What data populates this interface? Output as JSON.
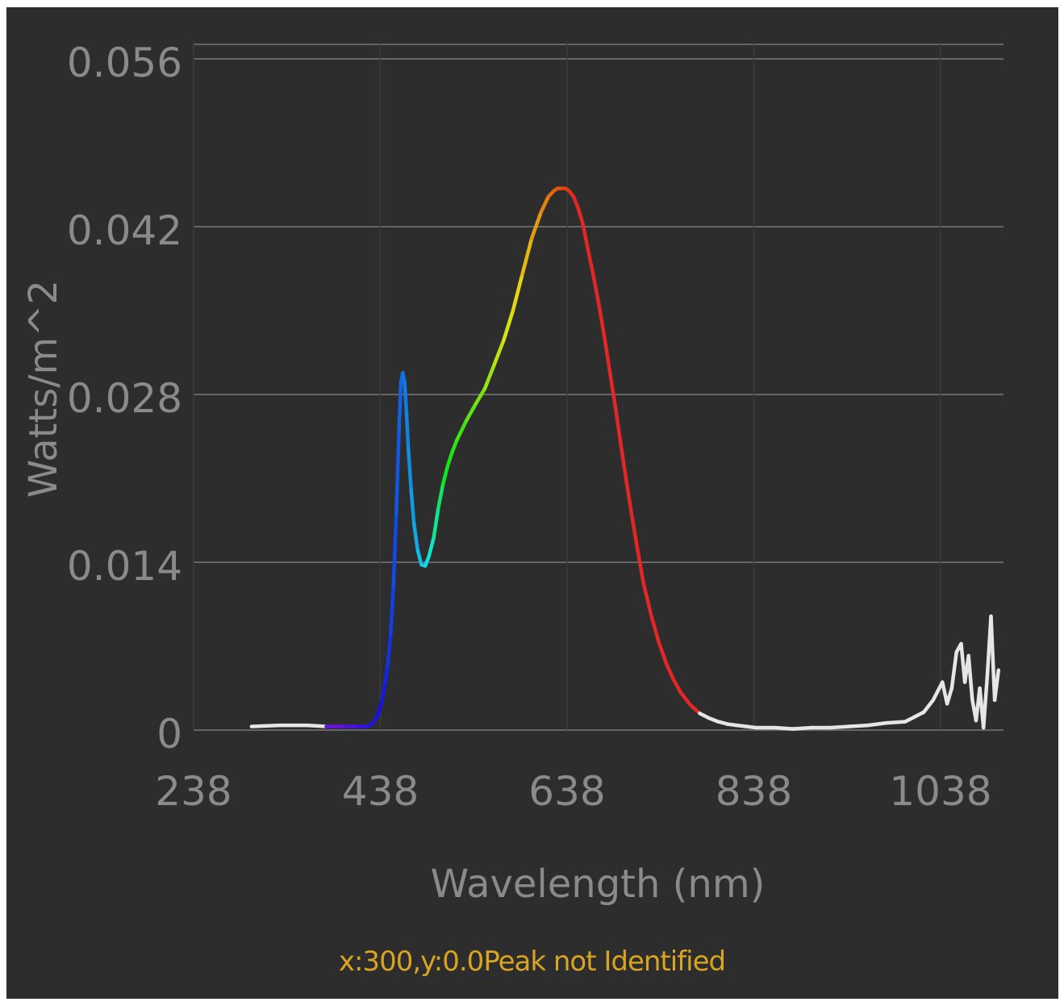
{
  "status_text": "x:300,y:0.0Peak not Identified",
  "colors": {
    "background": "#2d2d2d",
    "grid": "#666666",
    "text": "#8a8a8a",
    "status": "#d9a520"
  },
  "chart_data": {
    "type": "line",
    "title": "",
    "xlabel": "Wavelength (nm)",
    "ylabel": "Watts/m^2",
    "xlim": [
      238,
      1100
    ],
    "ylim": [
      0,
      0.056
    ],
    "x_ticks": [
      238,
      438,
      638,
      838,
      1038
    ],
    "x_tick_labels": [
      "238",
      "438",
      "638",
      "838",
      "1038"
    ],
    "y_ticks": [
      0,
      0.014,
      0.028,
      0.042,
      0.056
    ],
    "y_tick_labels": [
      "0",
      "0.014",
      "0.028",
      "0.042",
      "0.056"
    ],
    "grid": true,
    "legend": "none",
    "line_coloring": "visible-spectrum colors by wavelength (violet/blue to red), white outside the visible range",
    "series": [
      {
        "x": [
          300,
          330,
          360,
          380,
          400,
          415,
          425,
          430,
          435,
          440,
          443,
          446,
          449,
          452,
          455,
          458,
          460,
          462,
          464,
          466,
          468,
          471,
          474,
          478,
          482,
          486,
          490,
          495,
          500,
          505,
          510,
          515,
          520,
          530,
          540,
          550,
          560,
          570,
          580,
          590,
          600,
          610,
          618,
          624,
          628,
          632,
          636,
          640,
          645,
          650,
          655,
          660,
          666,
          672,
          678,
          684,
          690,
          696,
          702,
          708,
          714,
          720,
          728,
          736,
          744,
          752,
          760,
          770,
          780,
          790,
          800,
          810,
          820,
          830,
          840,
          860,
          880,
          900,
          920,
          940,
          960,
          980,
          1000,
          1010,
          1020,
          1030,
          1040,
          1045,
          1050,
          1055,
          1060,
          1064,
          1068,
          1072,
          1076,
          1080,
          1084,
          1088,
          1092,
          1096,
          1100
        ],
        "y": [
          0.0003,
          0.0004,
          0.0004,
          0.0003,
          0.0003,
          0.0003,
          0.0003,
          0.0006,
          0.0012,
          0.0025,
          0.004,
          0.0055,
          0.008,
          0.012,
          0.018,
          0.025,
          0.029,
          0.0298,
          0.029,
          0.0265,
          0.0235,
          0.02,
          0.0172,
          0.015,
          0.0138,
          0.0137,
          0.0145,
          0.016,
          0.0185,
          0.0205,
          0.022,
          0.0232,
          0.0242,
          0.0258,
          0.0272,
          0.0285,
          0.0305,
          0.0325,
          0.035,
          0.038,
          0.041,
          0.0432,
          0.0445,
          0.045,
          0.0452,
          0.0452,
          0.0452,
          0.045,
          0.0445,
          0.0435,
          0.0422,
          0.0402,
          0.038,
          0.0355,
          0.0328,
          0.0298,
          0.0268,
          0.0236,
          0.0205,
          0.0176,
          0.0148,
          0.0122,
          0.0096,
          0.0074,
          0.0056,
          0.0042,
          0.0031,
          0.0021,
          0.0014,
          0.001,
          0.0007,
          0.0005,
          0.0004,
          0.0003,
          0.0002,
          0.0002,
          0.0001,
          0.0002,
          0.0002,
          0.0003,
          0.0004,
          0.0006,
          0.0007,
          0.0011,
          0.0015,
          0.0025,
          0.004,
          0.0022,
          0.0035,
          0.0065,
          0.0072,
          0.004,
          0.0062,
          0.0025,
          0.0008,
          0.0035,
          0.0002,
          0.0045,
          0.0095,
          0.0025,
          0.005
        ]
      }
    ]
  }
}
